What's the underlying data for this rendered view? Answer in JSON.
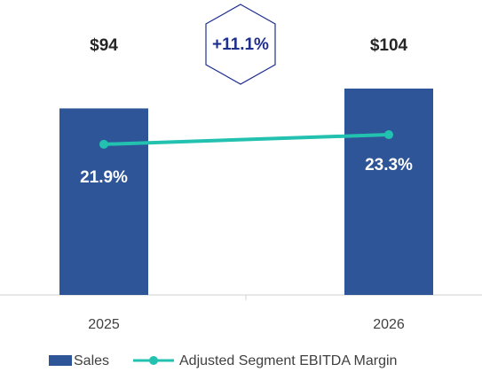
{
  "chart_data": {
    "type": "bar",
    "categories": [
      "2025",
      "2026"
    ],
    "series": [
      {
        "name": "Sales",
        "type": "bar",
        "color": "#2e5597",
        "values": [
          94,
          104
        ],
        "value_labels": [
          "$94",
          "$104"
        ]
      },
      {
        "name": "Adjusted Segment EBITDA Margin",
        "type": "line",
        "axis": "y2",
        "color": "#22c1b0",
        "values": [
          21.9,
          23.3
        ],
        "value_labels": [
          "21.9%",
          "23.3%"
        ]
      }
    ],
    "annotation": "+11.1%",
    "ylim": [
      0,
      104
    ],
    "y2lim": [
      0,
      30
    ],
    "legend": "bottom"
  }
}
